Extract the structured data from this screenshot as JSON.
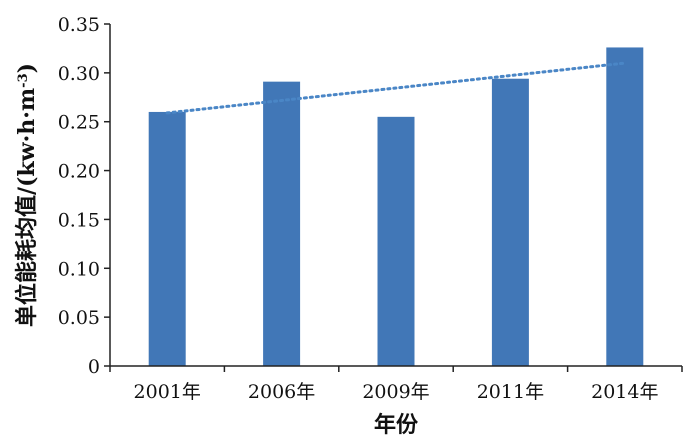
{
  "chart_data": {
    "type": "bar",
    "title": "",
    "xlabel": "年份",
    "ylabel": "单位能耗均值/(kw·h·m⁻³)",
    "ylabel_parts": {
      "main": "单位能耗均值/(kw·h·m",
      "sup": "-3",
      "close": ")"
    },
    "categories": [
      "2001年",
      "2006年",
      "2009年",
      "2011年",
      "2014年"
    ],
    "values": [
      0.26,
      0.291,
      0.255,
      0.294,
      0.326
    ],
    "ylim": [
      0,
      0.35
    ],
    "yticks": [
      0,
      0.05,
      0.1,
      0.15,
      0.2,
      0.25,
      0.3,
      0.35
    ],
    "ytick_labels": [
      "0",
      "0.05",
      "0.10",
      "0.15",
      "0.20",
      "0.25",
      "0.30",
      "0.35"
    ],
    "trendline": {
      "style": "dotted",
      "from_value": 0.259,
      "to_value": 0.31
    },
    "grid": false,
    "legend": "none",
    "colors": {
      "bar": "#4177b7",
      "trend": "#4a86c6",
      "axis": "#222222"
    }
  }
}
